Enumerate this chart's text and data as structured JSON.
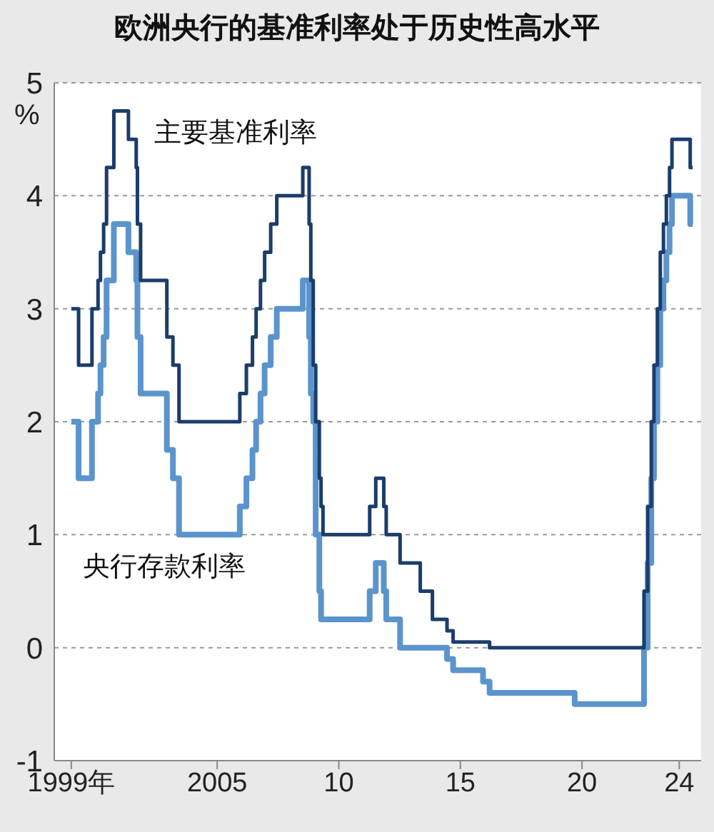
{
  "chart_data": {
    "type": "step",
    "title": "欧洲央行的基准利率处于历史性高水平",
    "ylabel": "%",
    "x": [
      1999.0,
      1999.3,
      1999.85,
      2000.1,
      2000.2,
      2000.33,
      2000.45,
      2000.75,
      2001.35,
      2001.67,
      2001.72,
      2001.85,
      2002.93,
      2003.18,
      2003.43,
      2005.93,
      2006.2,
      2006.45,
      2006.6,
      2006.78,
      2006.95,
      2007.2,
      2007.45,
      2008.52,
      2008.78,
      2008.85,
      2008.95,
      2009.05,
      2009.2,
      2009.27,
      2009.35,
      2011.27,
      2011.52,
      2011.85,
      2011.95,
      2012.52,
      2013.35,
      2013.85,
      2014.45,
      2014.7,
      2015.93,
      2016.2,
      2019.7,
      2022.55,
      2022.7,
      2022.85,
      2022.96,
      2023.1,
      2023.22,
      2023.35,
      2023.47,
      2023.6,
      2023.7,
      2024.45,
      2024.55
    ],
    "series": [
      {
        "name": "主要基准利率",
        "color": "#1b3d6b",
        "values": [
          3,
          2.5,
          3,
          3.25,
          3.5,
          3.75,
          4.25,
          4.75,
          4.5,
          4.25,
          3.75,
          3.25,
          2.75,
          2.5,
          2,
          2.25,
          2.5,
          2.75,
          3,
          3.25,
          3.5,
          3.75,
          4,
          4.25,
          3.75,
          3.25,
          2.5,
          2,
          1.5,
          1.25,
          1,
          1.25,
          1.5,
          1.25,
          1,
          0.75,
          0.5,
          0.25,
          0.15,
          0.05,
          0.05,
          0,
          0,
          0.5,
          1.25,
          2,
          2.5,
          3,
          3.5,
          3.75,
          4,
          4.25,
          4.5,
          4.25,
          4.25
        ]
      },
      {
        "name": "央行存款利率",
        "color": "#5b94cc",
        "values": [
          2,
          1.5,
          2,
          2.25,
          2.5,
          2.75,
          3.25,
          3.75,
          3.5,
          3.25,
          2.75,
          2.25,
          1.75,
          1.5,
          1,
          1.25,
          1.5,
          1.75,
          2,
          2.25,
          2.5,
          2.75,
          3,
          3.25,
          2.75,
          2.25,
          2,
          1,
          0.5,
          0.25,
          0.25,
          0.5,
          0.75,
          0.5,
          0.25,
          0,
          0,
          0,
          -0.1,
          -0.2,
          -0.3,
          -0.4,
          -0.5,
          0,
          0.75,
          1.5,
          2,
          2.5,
          3,
          3.25,
          3.5,
          3.75,
          4,
          3.75,
          3.75
        ]
      }
    ],
    "xlim": [
      1998.3,
      2024.9
    ],
    "xticks": [
      {
        "value": 1999,
        "label": "1999年"
      },
      2005,
      {
        "value": 2010,
        "label": "10"
      },
      {
        "value": 2015,
        "label": "15"
      },
      {
        "value": 2020,
        "label": "20"
      },
      {
        "value": 2024,
        "label": "24"
      }
    ],
    "ylim": [
      -1,
      5
    ],
    "yticks": [
      -1,
      0,
      1,
      2,
      3,
      4,
      5
    ],
    "grid": "y"
  }
}
